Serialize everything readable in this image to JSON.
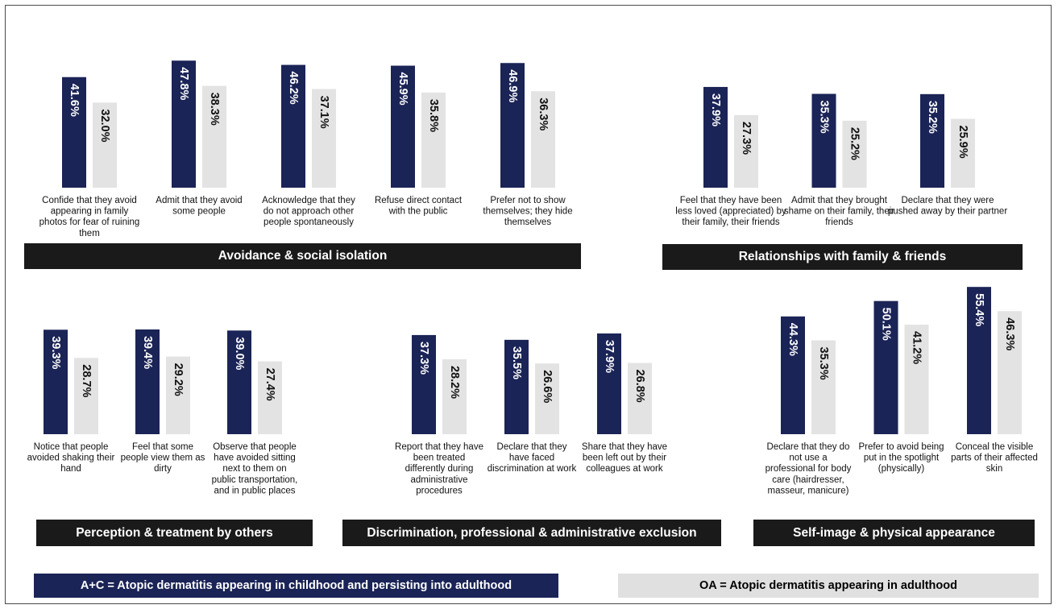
{
  "colors": {
    "ac": "#1b2456",
    "oa": "#e3e3e3",
    "banner": "#1a1a1a"
  },
  "legend": {
    "ac": "A+C = Atopic dermatitis appearing in childhood and persisting into adulthood",
    "oa": "OA = Atopic dermatitis appearing in adulthood"
  },
  "chart_data": [
    {
      "type": "bar",
      "title": "Avoidance & social isolation",
      "categories": [
        "Confide that they avoid appearing in family photos for fear of ruining them",
        "Admit that they avoid some people",
        "Acknowledge that they do not approach other people spontaneously",
        "Refuse direct contact with the public",
        "Prefer not to show themselves; they hide themselves"
      ],
      "series": [
        {
          "name": "A+C",
          "values": [
            41.6,
            47.8,
            46.2,
            45.9,
            46.9
          ],
          "labels": [
            "41.6%",
            "47.8%",
            "46.2%",
            "45.9%",
            "46.9%"
          ]
        },
        {
          "name": "OA",
          "values": [
            32.0,
            38.3,
            37.1,
            35.8,
            36.3
          ],
          "labels": [
            "32.0%",
            "38.3%",
            "37.1%",
            "35.8%",
            "36.3%"
          ]
        }
      ]
    },
    {
      "type": "bar",
      "title": "Relationships with family & friends",
      "categories": [
        "Feel that they have been less loved (appreciated) by their family, their friends",
        "Admit that they brought shame on their family, their friends",
        "Declare that they were pushed away by their partner"
      ],
      "series": [
        {
          "name": "A+C",
          "values": [
            37.9,
            35.3,
            35.2
          ],
          "labels": [
            "37.9%",
            "35.3%",
            "35.2%"
          ]
        },
        {
          "name": "OA",
          "values": [
            27.3,
            25.2,
            25.9
          ],
          "labels": [
            "27.3%",
            "25.2%",
            "25.9%"
          ]
        }
      ]
    },
    {
      "type": "bar",
      "title": "Perception & treatment by others",
      "categories": [
        "Notice that people avoided shaking their hand",
        "Feel that some people view them as dirty",
        "Observe that people have avoided sitting next to them on public transportation, and in public places"
      ],
      "series": [
        {
          "name": "A+C",
          "values": [
            39.3,
            39.4,
            39.0
          ],
          "labels": [
            "39.3%",
            "39.4%",
            "39.0%"
          ]
        },
        {
          "name": "OA",
          "values": [
            28.7,
            29.2,
            27.4
          ],
          "labels": [
            "28.7%",
            "29.2%",
            "27.4%"
          ]
        }
      ]
    },
    {
      "type": "bar",
      "title": "Discrimination, professional & administrative exclusion",
      "categories": [
        "Report that they have been treated differently during administrative procedures",
        "Declare that they have faced discrimination at work",
        "Share that they have been left out by their colleagues at work"
      ],
      "series": [
        {
          "name": "A+C",
          "values": [
            37.3,
            35.5,
            37.9
          ],
          "labels": [
            "37.3%",
            "35.5%",
            "37.9%"
          ]
        },
        {
          "name": "OA",
          "values": [
            28.2,
            26.6,
            26.8
          ],
          "labels": [
            "28.2%",
            "26.6%",
            "26.8%"
          ]
        }
      ]
    },
    {
      "type": "bar",
      "title": "Self-image & physical appearance",
      "categories": [
        "Declare that they do not use a professional for body care (hairdresser, masseur, manicure)",
        "Prefer to avoid being put in the spotlight (physically)",
        "Conceal the visible parts of their affected skin"
      ],
      "series": [
        {
          "name": "A+C",
          "values": [
            44.3,
            50.1,
            55.4
          ],
          "labels": [
            "44.3%",
            "50.1%",
            "55.4%"
          ]
        },
        {
          "name": "OA",
          "values": [
            35.3,
            41.2,
            46.3
          ],
          "labels": [
            "35.3%",
            "41.2%",
            "46.3%"
          ]
        }
      ]
    }
  ]
}
